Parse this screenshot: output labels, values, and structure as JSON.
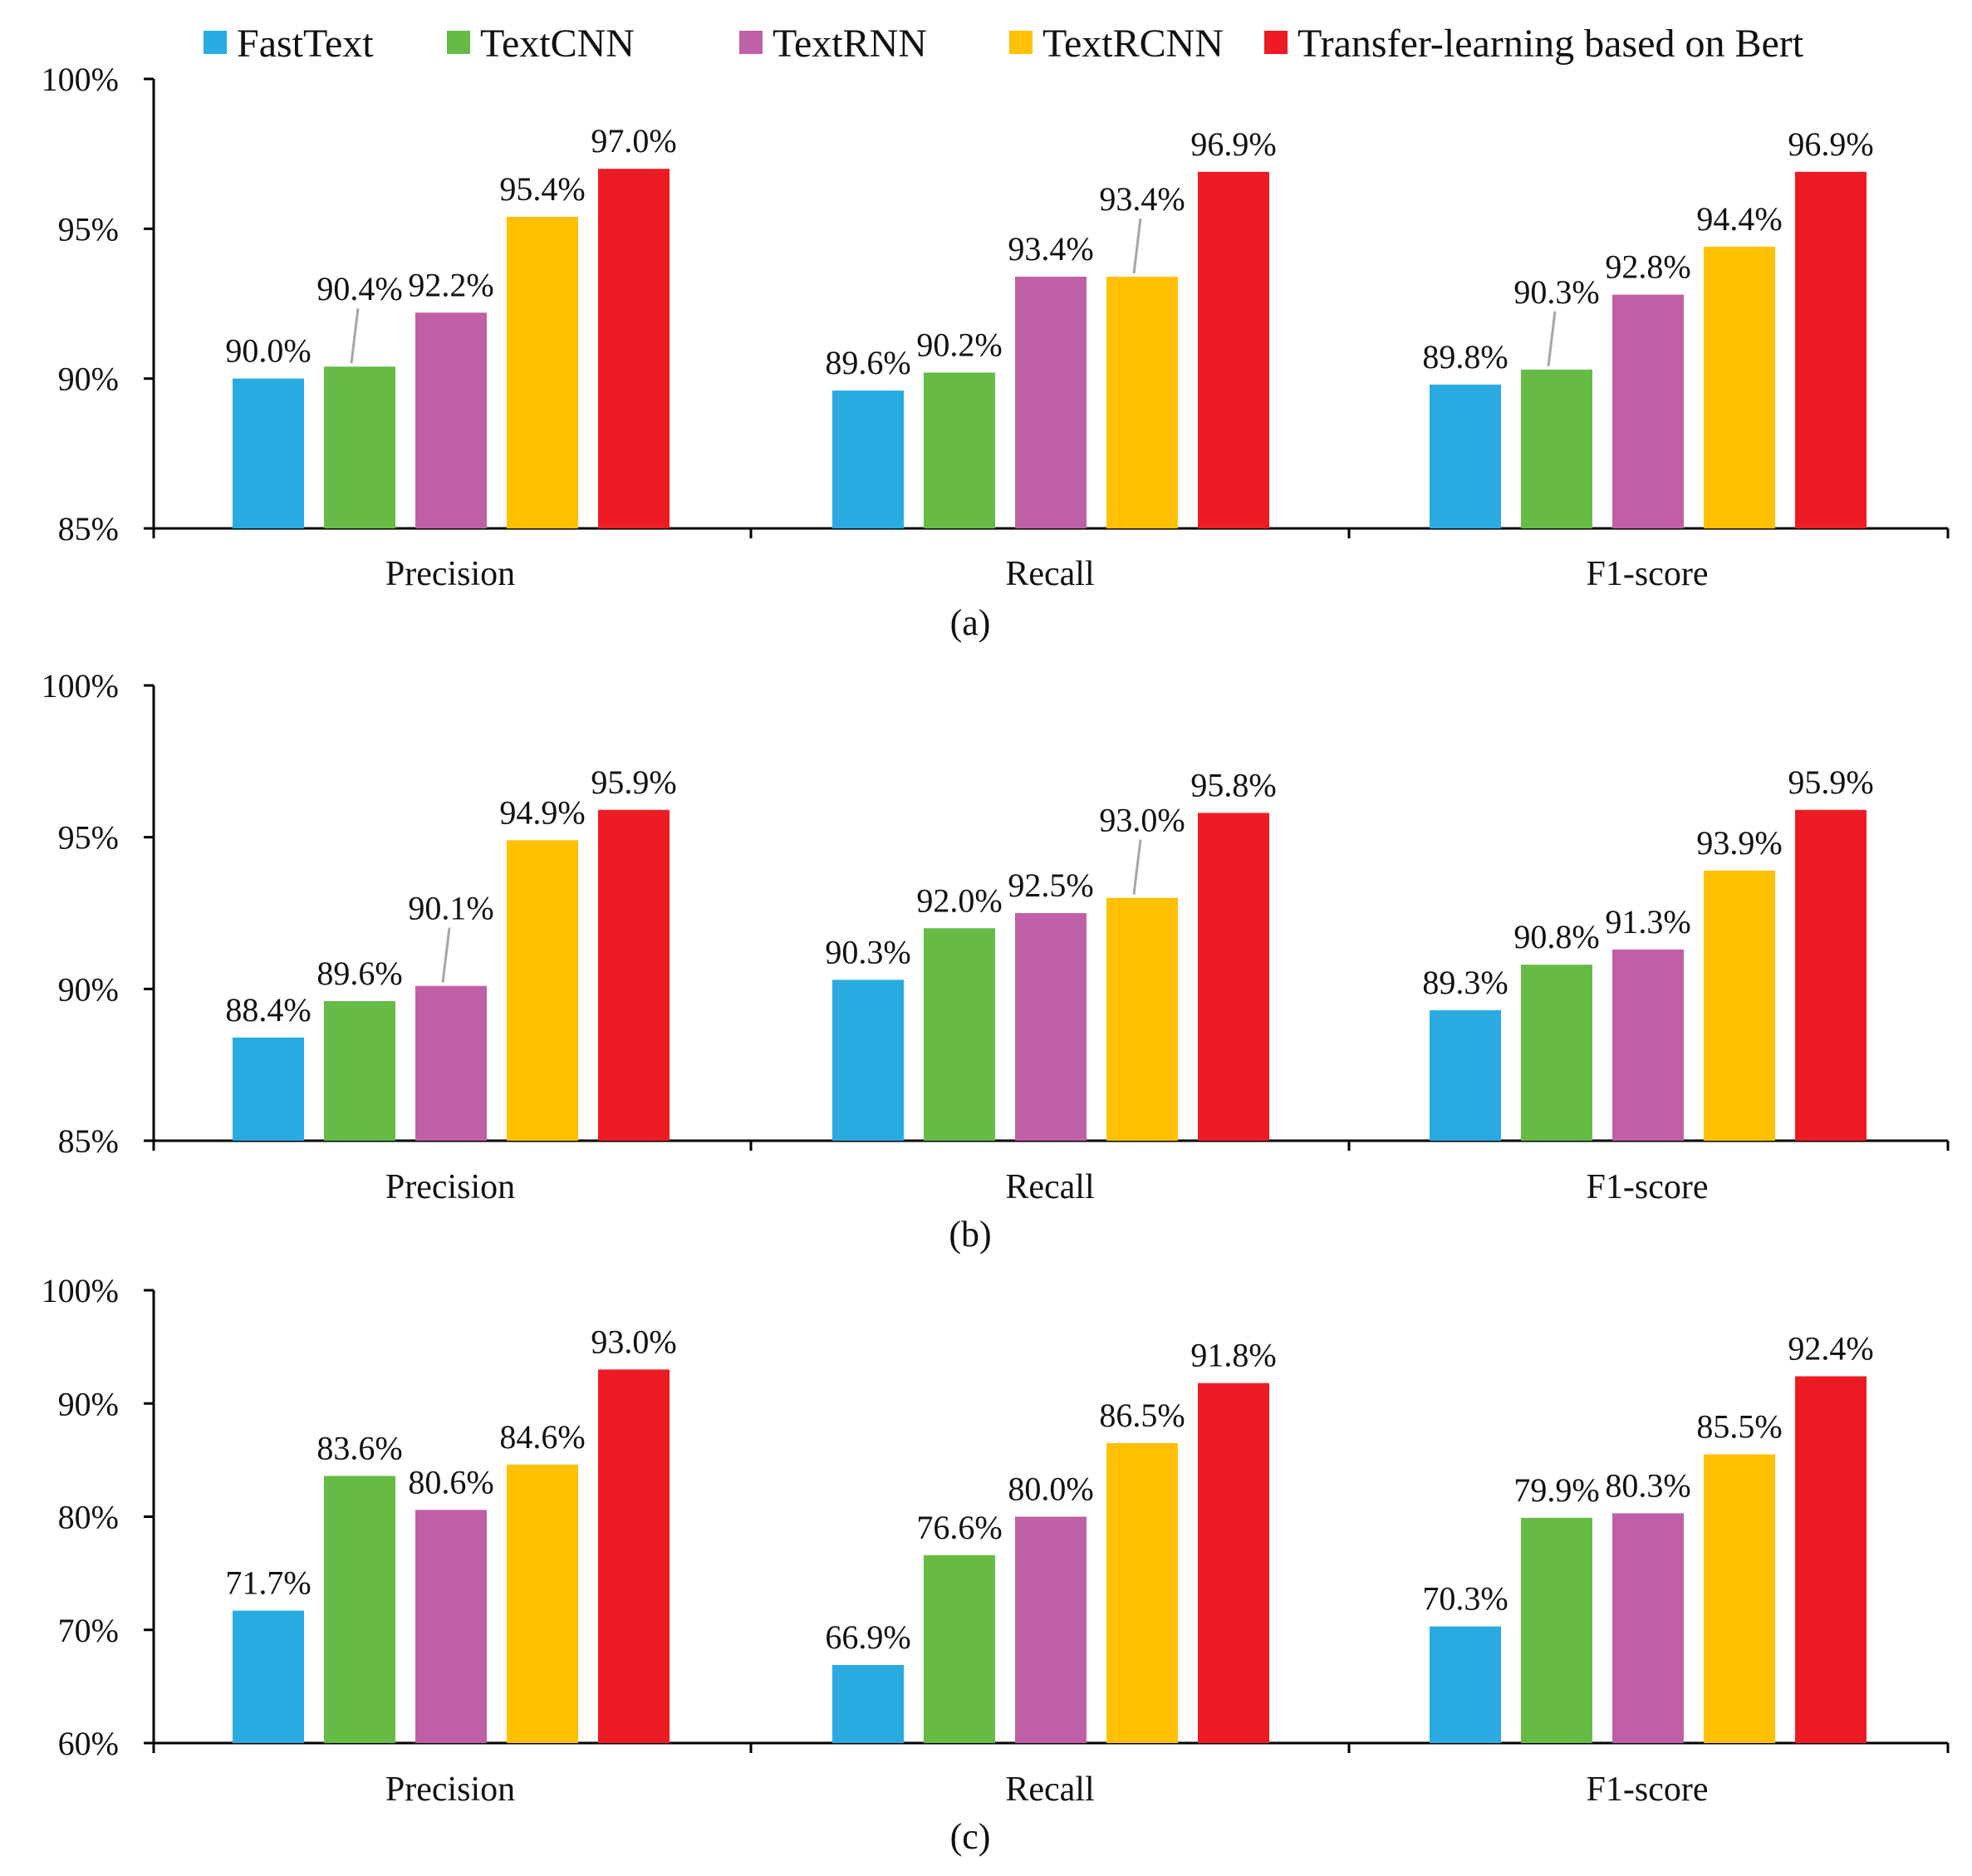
{
  "legend": [
    {
      "name": "FastText",
      "color": "#29abe2"
    },
    {
      "name": "TextCNN",
      "color": "#65bb46"
    },
    {
      "name": "TextRNN",
      "color": "#bf5fa8"
    },
    {
      "name": "TextRCNN",
      "color": "#ffc000"
    },
    {
      "name": "Transfer-learning based on Bert",
      "color": "#ed1c24"
    }
  ],
  "chart_data": [
    {
      "type": "bar",
      "caption": "(a)",
      "categories": [
        "Precision",
        "Recall",
        "F1-score"
      ],
      "ylim": [
        85,
        100
      ],
      "yticks": [
        85,
        90,
        95,
        100
      ],
      "ytick_labels": [
        "85%",
        "90%",
        "95%",
        "100%"
      ],
      "series": [
        {
          "name": "FastText",
          "values": [
            90.0,
            89.6,
            89.8
          ],
          "labels": [
            "90.0%",
            "89.6%",
            "89.8%"
          ]
        },
        {
          "name": "TextCNN",
          "values": [
            90.4,
            90.2,
            90.3
          ],
          "labels": [
            "90.4%",
            "90.2%",
            "90.3%"
          ]
        },
        {
          "name": "TextRNN",
          "values": [
            92.2,
            93.4,
            92.8
          ],
          "labels": [
            "92.2%",
            "93.4%",
            "92.8%"
          ]
        },
        {
          "name": "TextRCNN",
          "values": [
            95.4,
            93.4,
            94.4
          ],
          "labels": [
            "95.4%",
            "93.4%",
            "94.4%"
          ]
        },
        {
          "name": "Transfer-learning based on Bert",
          "values": [
            97.0,
            96.9,
            96.9
          ],
          "labels": [
            "97.0%",
            "96.9%",
            "96.9%"
          ]
        }
      ]
    },
    {
      "type": "bar",
      "caption": "(b)",
      "categories": [
        "Precision",
        "Recall",
        "F1-score"
      ],
      "ylim": [
        85,
        100
      ],
      "yticks": [
        85,
        90,
        95,
        100
      ],
      "ytick_labels": [
        "85%",
        "90%",
        "95%",
        "100%"
      ],
      "series": [
        {
          "name": "FastText",
          "values": [
            88.4,
            90.3,
            89.3
          ],
          "labels": [
            "88.4%",
            "90.3%",
            "89.3%"
          ]
        },
        {
          "name": "TextCNN",
          "values": [
            89.6,
            92.0,
            90.8
          ],
          "labels": [
            "89.6%",
            "92.0%",
            "90.8%"
          ]
        },
        {
          "name": "TextRNN",
          "values": [
            90.1,
            92.5,
            91.3
          ],
          "labels": [
            "90.1%",
            "92.5%",
            "91.3%"
          ]
        },
        {
          "name": "TextRCNN",
          "values": [
            94.9,
            93.0,
            93.9
          ],
          "labels": [
            "94.9%",
            "93.0%",
            "93.9%"
          ]
        },
        {
          "name": "Transfer-learning based on Bert",
          "values": [
            95.9,
            95.8,
            95.9
          ],
          "labels": [
            "95.9%",
            "95.8%",
            "95.9%"
          ]
        }
      ]
    },
    {
      "type": "bar",
      "caption": "(c)",
      "categories": [
        "Precision",
        "Recall",
        "F1-score"
      ],
      "ylim": [
        60,
        100
      ],
      "yticks": [
        60,
        70,
        80,
        90,
        100
      ],
      "ytick_labels": [
        "60%",
        "70%",
        "80%",
        "90%",
        "100%"
      ],
      "series": [
        {
          "name": "FastText",
          "values": [
            71.7,
            66.9,
            70.3
          ],
          "labels": [
            "71.7%",
            "66.9%",
            "70.3%"
          ]
        },
        {
          "name": "TextCNN",
          "values": [
            83.6,
            76.6,
            79.9
          ],
          "labels": [
            "83.6%",
            "76.6%",
            "79.9%"
          ]
        },
        {
          "name": "TextRNN",
          "values": [
            80.6,
            80.0,
            80.3
          ],
          "labels": [
            "80.6%",
            "80.0%",
            "80.3%"
          ]
        },
        {
          "name": "TextRCNN",
          "values": [
            84.6,
            86.5,
            85.5
          ],
          "labels": [
            "84.6%",
            "86.5%",
            "85.5%"
          ]
        },
        {
          "name": "Transfer-learning based on Bert",
          "values": [
            93.0,
            91.8,
            92.4
          ],
          "labels": [
            "93.0%",
            "91.8%",
            "92.4%"
          ]
        }
      ]
    }
  ]
}
